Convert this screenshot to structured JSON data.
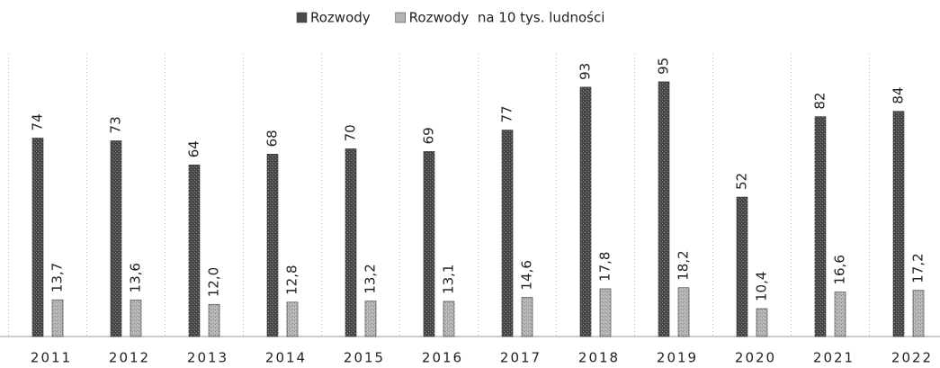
{
  "chart_data": {
    "type": "bar",
    "categories": [
      "2011",
      "2012",
      "2013",
      "2014",
      "2015",
      "2016",
      "2017",
      "2018",
      "2019",
      "2020",
      "2021",
      "2022"
    ],
    "series": [
      {
        "name": "Rozwody",
        "color": "#4a4a4a",
        "values": [
          74,
          73,
          64,
          68,
          70,
          69,
          77,
          93,
          95,
          52,
          82,
          84
        ]
      },
      {
        "name": "Rozwody  na 10 tys. ludności",
        "color": "#b3b3b3",
        "values": [
          13.7,
          13.6,
          12.0,
          12.8,
          13.2,
          13.1,
          14.6,
          17.8,
          18.2,
          10.4,
          16.6,
          17.2
        ],
        "value_labels": [
          "13,7",
          "13,6",
          "12,0",
          "12,8",
          "13,2",
          "13,1",
          "14,6",
          "17,8",
          "18,2",
          "10,4",
          "16,6",
          "17,2"
        ]
      }
    ],
    "legend": "top"
  }
}
